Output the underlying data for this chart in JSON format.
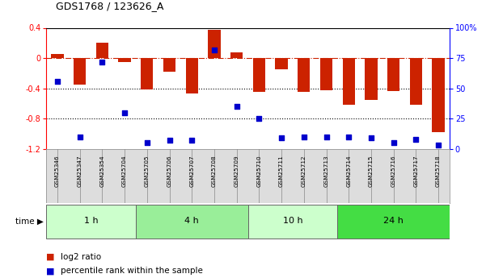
{
  "title": "GDS1768 / 123626_A",
  "samples": [
    "GSM25346",
    "GSM25347",
    "GSM25354",
    "GSM25704",
    "GSM25705",
    "GSM25706",
    "GSM25707",
    "GSM25708",
    "GSM25709",
    "GSM25710",
    "GSM25711",
    "GSM25712",
    "GSM25713",
    "GSM25714",
    "GSM25715",
    "GSM25716",
    "GSM25717",
    "GSM25718"
  ],
  "log2_ratio": [
    0.05,
    -0.35,
    0.2,
    -0.05,
    -0.42,
    -0.18,
    -0.47,
    0.37,
    0.08,
    -0.45,
    -0.15,
    -0.45,
    -0.43,
    -0.62,
    -0.55,
    -0.44,
    -0.62,
    -0.98
  ],
  "percentile_rank": [
    56,
    10,
    72,
    30,
    5,
    7,
    7,
    82,
    35,
    25,
    9,
    10,
    10,
    10,
    9,
    5,
    8,
    3
  ],
  "time_groups": [
    {
      "label": "1 h",
      "start": 0,
      "end": 4,
      "color": "#ccffcc"
    },
    {
      "label": "4 h",
      "start": 4,
      "end": 9,
      "color": "#99ee99"
    },
    {
      "label": "10 h",
      "start": 9,
      "end": 13,
      "color": "#ccffcc"
    },
    {
      "label": "24 h",
      "start": 13,
      "end": 18,
      "color": "#44dd44"
    }
  ],
  "bar_color": "#cc2200",
  "dot_color": "#0000cc",
  "ylim_left": [
    -1.2,
    0.4
  ],
  "ylim_right": [
    0,
    100
  ],
  "yticks_left": [
    -1.2,
    -0.8,
    -0.4,
    0.0,
    0.4
  ],
  "ytick_labels_left": [
    "-1.2",
    "-0.8",
    "-0.4",
    "0",
    "0.4"
  ],
  "yticks_right": [
    0,
    25,
    50,
    75,
    100
  ],
  "ytick_labels_right": [
    "0",
    "25",
    "50",
    "75",
    "100%"
  ],
  "hlines": [
    -0.4,
    -0.8
  ],
  "zero_line": 0.0,
  "background_color": "#ffffff",
  "label_bg": "#dddddd",
  "legend": [
    {
      "color": "#cc2200",
      "label": "log2 ratio"
    },
    {
      "color": "#0000cc",
      "label": "percentile rank within the sample"
    }
  ]
}
